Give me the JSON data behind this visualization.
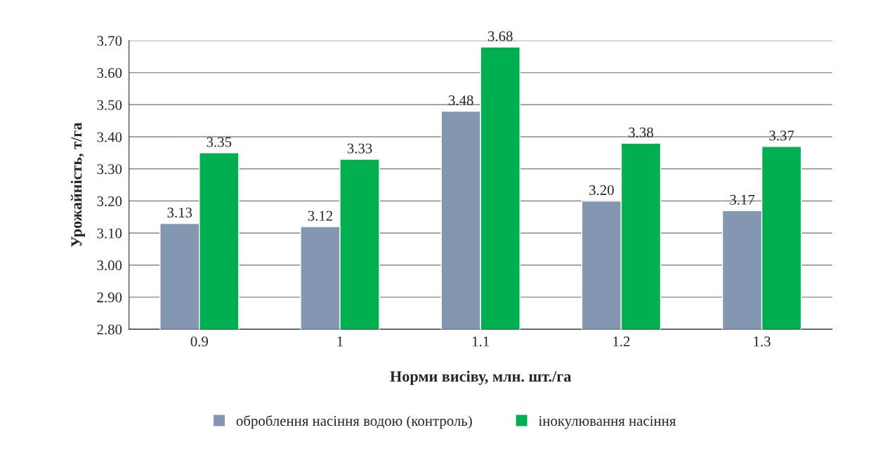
{
  "chart_data": {
    "type": "bar",
    "xlabel": "Норми висіву, млн. шт./га",
    "ylabel": "Урожайність, т/га",
    "categories": [
      "0.9",
      "1",
      "1.1",
      "1.2",
      "1.3"
    ],
    "series": [
      {
        "name": "оброблення насіння водою (контроль)",
        "color": "#8497b0",
        "values": [
          3.13,
          3.12,
          3.48,
          3.2,
          3.17
        ],
        "value_labels": [
          "3.13",
          "3.12",
          "3.48",
          "3.20",
          "3.17"
        ]
      },
      {
        "name": "інокулювання насіння",
        "color": "#00b050",
        "values": [
          3.35,
          3.33,
          3.68,
          3.38,
          3.37
        ],
        "value_labels": [
          "3.35",
          "3.33",
          "3.68",
          "3.38",
          "3.37"
        ]
      }
    ],
    "ylim": [
      2.8,
      3.7
    ],
    "yticks": [
      {
        "value": 2.8,
        "label": "2.80"
      },
      {
        "value": 2.9,
        "label": "2.90"
      },
      {
        "value": 3.0,
        "label": "3.00"
      },
      {
        "value": 3.1,
        "label": "3.10"
      },
      {
        "value": 3.2,
        "label": "3.20"
      },
      {
        "value": 3.3,
        "label": "3.30"
      },
      {
        "value": 3.4,
        "label": "3.40"
      },
      {
        "value": 3.5,
        "label": "3.50"
      },
      {
        "value": 3.6,
        "label": "3.60"
      },
      {
        "value": 3.7,
        "label": "3.70"
      }
    ],
    "grid": "y",
    "legend": "bottom"
  }
}
